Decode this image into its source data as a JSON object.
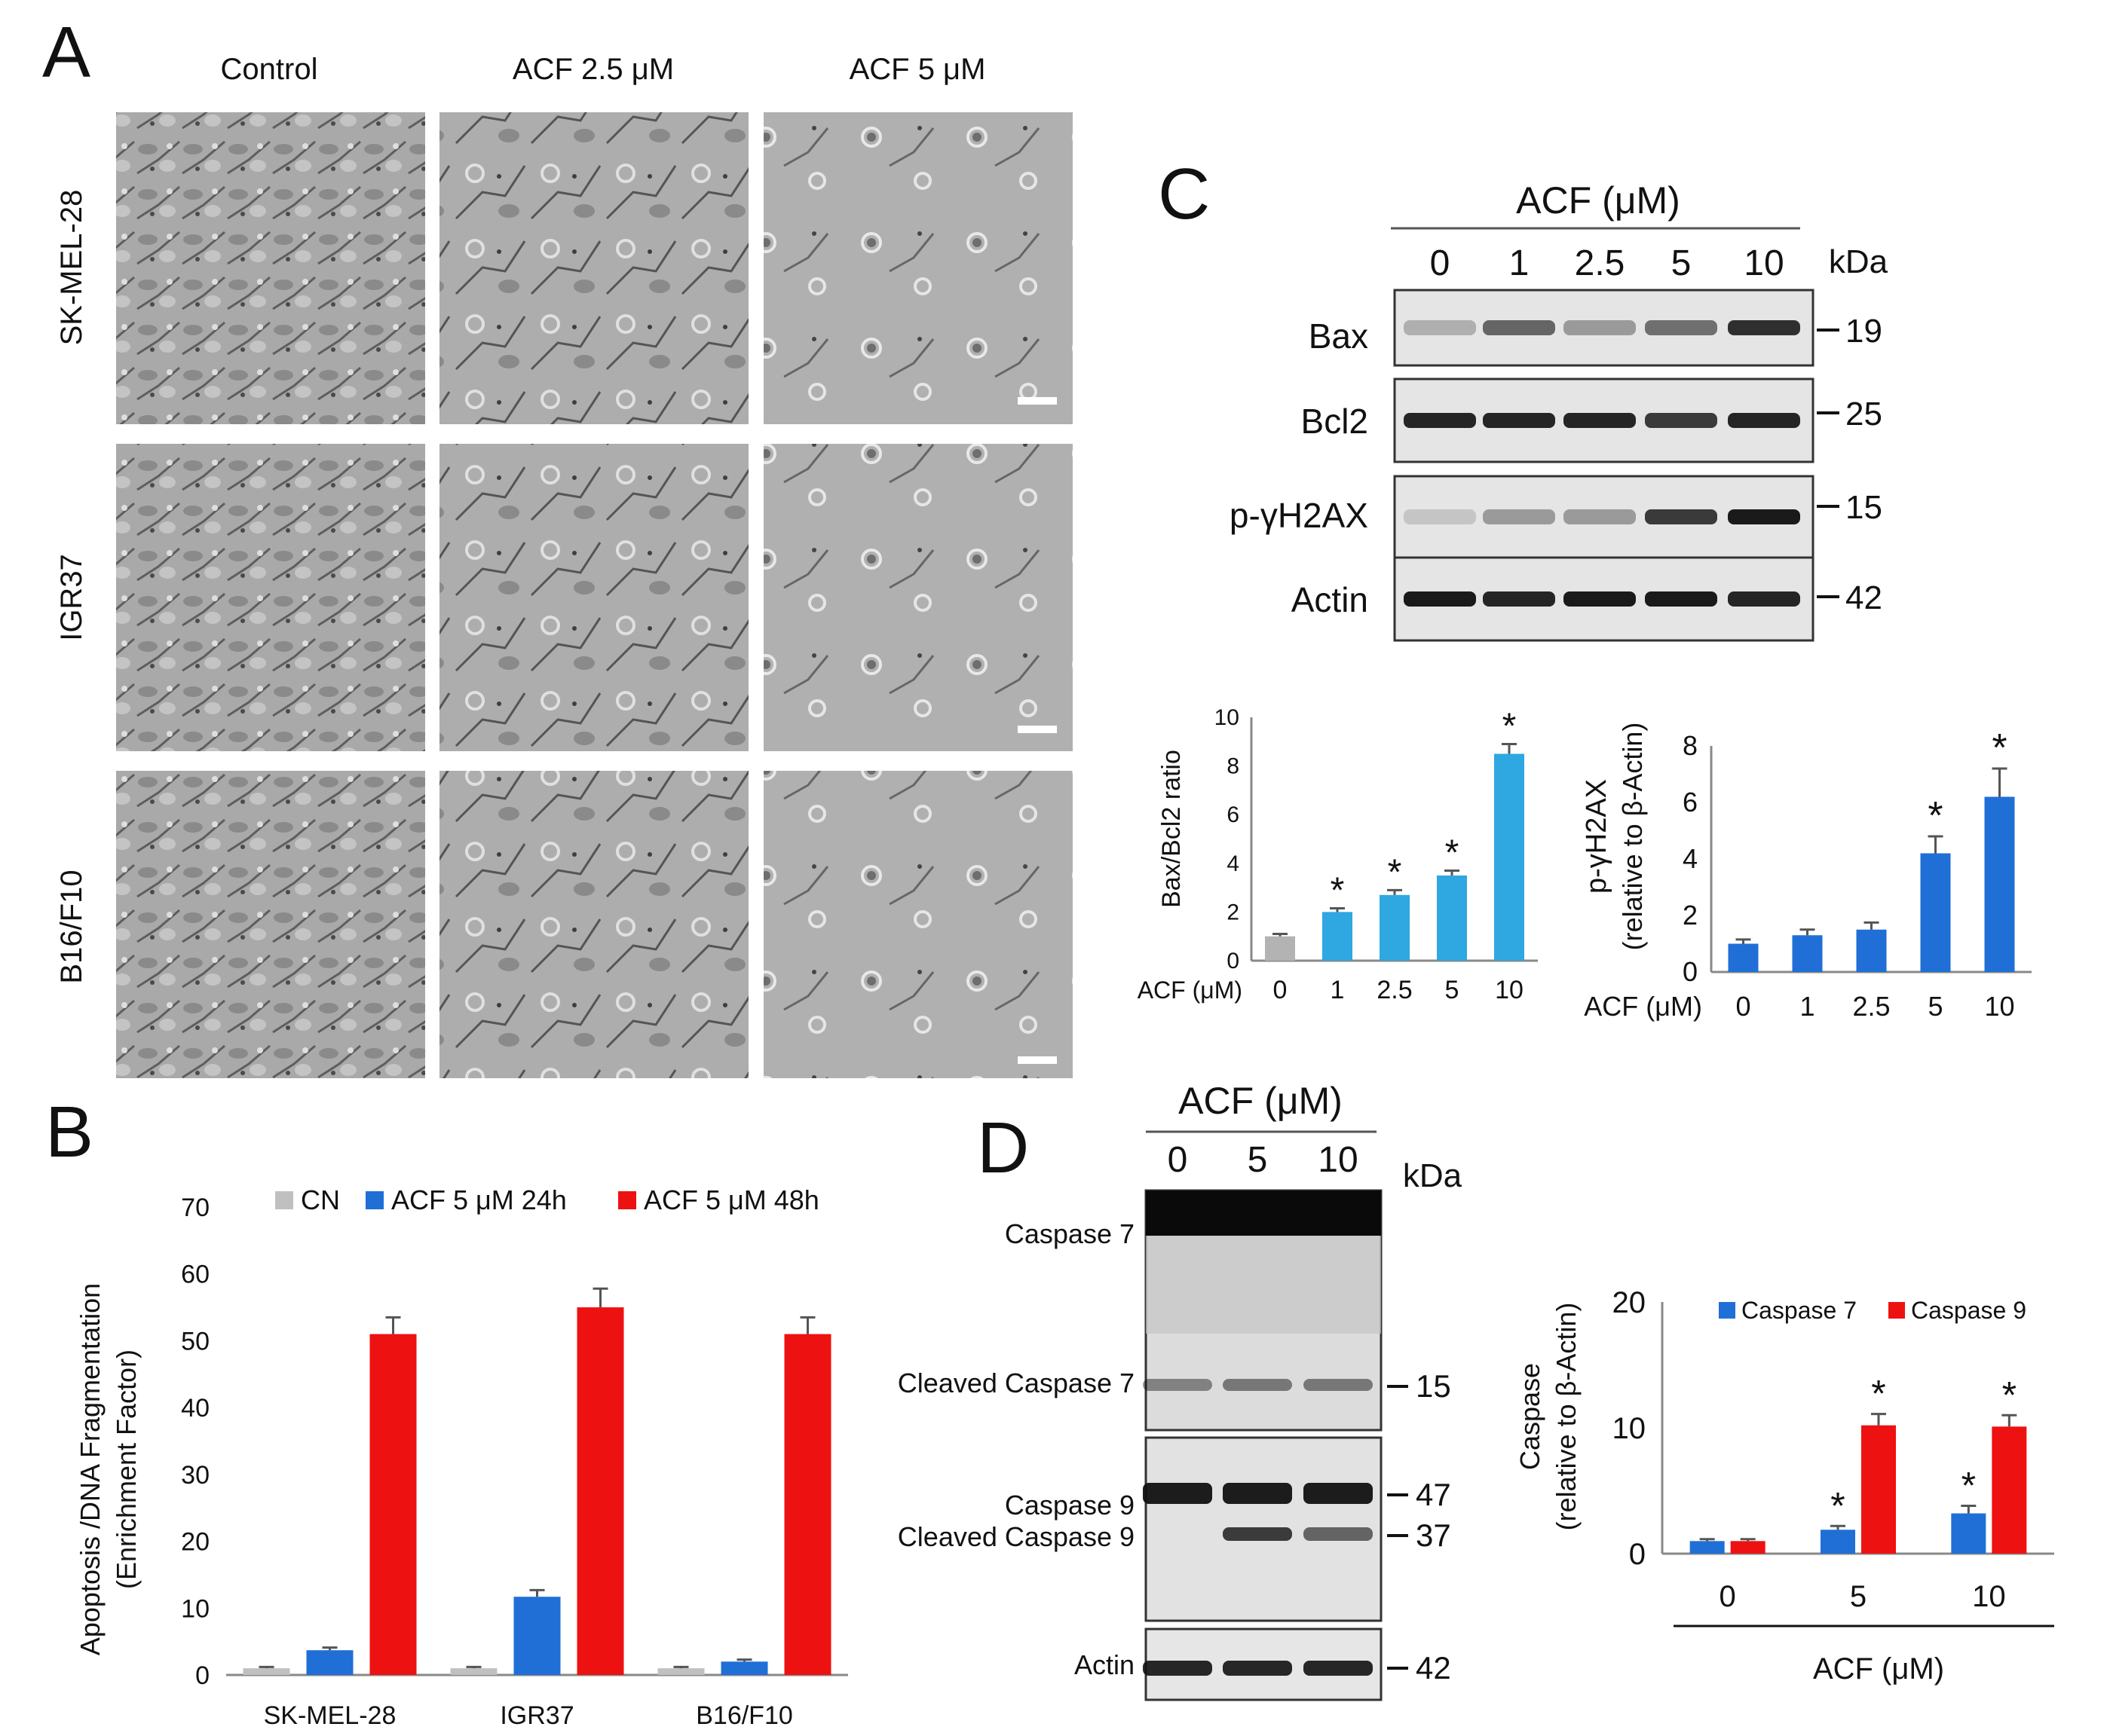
{
  "panels": {
    "A": "A",
    "B": "B",
    "C": "C",
    "D": "D"
  },
  "panelA": {
    "col_headers": [
      "Control",
      "ACF 2.5 μM",
      "ACF 5 μM"
    ],
    "row_labels": [
      "SK-MEL-28",
      "IGR37",
      "B16/F10"
    ]
  },
  "panelB": {
    "chart_data": {
      "type": "bar",
      "ylabel_line1": "Apoptosis /DNA Fragmentation",
      "ylabel_line2": "(Enrichment Factor)",
      "categories": [
        "SK-MEL-28",
        "IGR37",
        "B16/F10"
      ],
      "ylim": [
        0,
        70
      ],
      "yticks": [
        "0",
        "10",
        "20",
        "30",
        "40",
        "50",
        "60",
        "70"
      ],
      "series": [
        {
          "name": "CN",
          "values": [
            1,
            1,
            1
          ],
          "errors": [
            0.2,
            0.2,
            0.2
          ],
          "color": "#c0c0c0"
        },
        {
          "name": "ACF 5 μM 24h",
          "values": [
            3.7,
            11.7,
            2.0
          ],
          "errors": [
            0.4,
            1.0,
            0.3
          ],
          "color": "#1f6fd6"
        },
        {
          "name": "ACF 5 μM 48h",
          "values": [
            51,
            55,
            51
          ],
          "errors": [
            2.5,
            2.8,
            2.5
          ],
          "color": "#ee1111"
        }
      ]
    }
  },
  "panelC": {
    "blot": {
      "header": "ACF (μM)",
      "lanes": [
        "0",
        "1",
        "2.5",
        "5",
        "10"
      ],
      "kda": "kDa",
      "rows": [
        {
          "label": "Bax",
          "marker": "19"
        },
        {
          "label": "Bcl2",
          "marker": "25"
        },
        {
          "label": "p-γH2AX",
          "marker": "15"
        },
        {
          "label": "Actin",
          "marker": "42"
        }
      ]
    },
    "chart_data": [
      {
        "type": "bar",
        "ylabel": "Bax/Bcl2 ratio",
        "xlabel_prefix": "ACF (μM)",
        "categories": [
          "0",
          "1",
          "2.5",
          "5",
          "10"
        ],
        "values": [
          1.0,
          2.0,
          2.7,
          3.5,
          8.5
        ],
        "errors": [
          0.1,
          0.15,
          0.2,
          0.2,
          0.4
        ],
        "significant": [
          false,
          true,
          true,
          true,
          true
        ],
        "ylim": [
          0,
          10
        ],
        "yticks": [
          "0",
          "2",
          "4",
          "6",
          "8",
          "10"
        ],
        "colors": [
          "#b3b3b3",
          "#2fa7e0"
        ]
      },
      {
        "type": "bar",
        "ylabel_line1": "p-γH2AX",
        "ylabel_line2": "(relative to β-Actin)",
        "xlabel_prefix": "ACF (μM)",
        "categories": [
          "0",
          "1",
          "2.5",
          "5",
          "10"
        ],
        "values": [
          1.0,
          1.3,
          1.5,
          4.2,
          6.2
        ],
        "errors": [
          0.15,
          0.2,
          0.25,
          0.6,
          1.0
        ],
        "significant": [
          false,
          false,
          false,
          true,
          true
        ],
        "ylim": [
          0,
          8
        ],
        "yticks": [
          "0",
          "2",
          "4",
          "6",
          "8"
        ],
        "color": "#1f6fd6"
      }
    ],
    "asterisk": "*"
  },
  "panelD": {
    "blot": {
      "header": "ACF (μM)",
      "lanes": [
        "0",
        "5",
        "10"
      ],
      "kda": "kDa",
      "labels": [
        "Caspase 7",
        "Cleaved Caspase 7",
        "Caspase 9",
        "Cleaved Caspase 9",
        "Actin"
      ],
      "markers": [
        "15",
        "47",
        "37",
        "42"
      ]
    },
    "chart_data": {
      "type": "bar",
      "ylabel_line1": "Caspase",
      "ylabel_line2": "(relative to β-Actin)",
      "xlabel": "ACF (μM)",
      "categories": [
        "0",
        "5",
        "10"
      ],
      "ylim": [
        0,
        20
      ],
      "yticks": [
        "0",
        "10",
        "20"
      ],
      "series": [
        {
          "name": "Caspase 7",
          "values": [
            1.0,
            1.9,
            3.2
          ],
          "errors": [
            0.15,
            0.3,
            0.6
          ],
          "significant": [
            false,
            true,
            true
          ],
          "color": "#1f6fd6"
        },
        {
          "name": "Caspase 9",
          "values": [
            1.0,
            10.2,
            10.1
          ],
          "errors": [
            0.15,
            0.9,
            0.9
          ],
          "significant": [
            false,
            true,
            true
          ],
          "color": "#ee1111"
        }
      ]
    },
    "asterisk": "*"
  }
}
